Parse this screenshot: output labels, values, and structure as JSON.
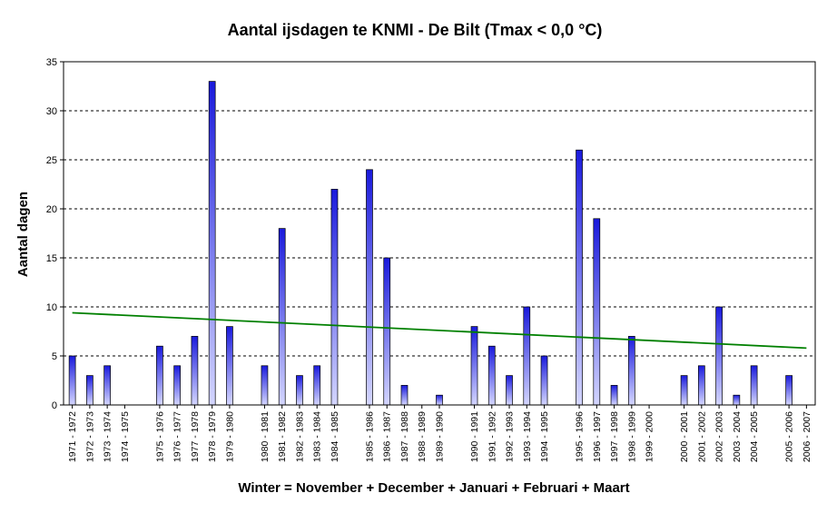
{
  "chart_data": {
    "type": "bar",
    "title": "Aantal ijsdagen te KNMI - De Bilt (Tmax < 0,0 °C)",
    "xlabel": "Winter = November + December + Januari + Februari + Maart",
    "ylabel": "Aantal dagen",
    "ylim": [
      0,
      35
    ],
    "yticks": [
      0,
      5,
      10,
      15,
      20,
      25,
      30,
      35
    ],
    "grid": "horizontal dashed",
    "categories": [
      "1971 - 1972",
      "1972 - 1973",
      "1973 - 1974",
      "1974 - 1975",
      "",
      "1975 - 1976",
      "1976 - 1977",
      "1977 - 1978",
      "1978 - 1979",
      "1979 - 1980",
      "",
      "1980 - 1981",
      "1981 - 1982",
      "1982 - 1983",
      "1983 - 1984",
      "1984 - 1985",
      "",
      "1985 - 1986",
      "1986 - 1987",
      "1987 - 1988",
      "1988 - 1989",
      "1989 - 1990",
      "",
      "1990 - 1991",
      "1991 - 1992",
      "1992 - 1993",
      "1993 - 1994",
      "1994 - 1995",
      "",
      "1995 - 1996",
      "1996 - 1997",
      "1997 - 1998",
      "1998 - 1999",
      "1999 - 2000",
      "",
      "2000 - 2001",
      "2001 - 2002",
      "2002 - 2003",
      "2003 - 2004",
      "2004 - 2005",
      "",
      "2005 - 2006",
      "2006 - 2007"
    ],
    "series": [
      {
        "values": [
          5,
          3,
          4,
          0,
          null,
          6,
          4,
          7,
          33,
          8,
          null,
          4,
          18,
          3,
          4,
          22,
          null,
          24,
          15,
          2,
          0,
          1,
          null,
          8,
          6,
          3,
          10,
          5,
          null,
          26,
          19,
          2,
          7,
          0,
          null,
          3,
          4,
          10,
          1,
          4,
          null,
          3,
          0
        ],
        "color": "#1a1adc"
      }
    ],
    "trendline": {
      "start": 9.4,
      "end": 5.8,
      "color": "#008000"
    }
  }
}
